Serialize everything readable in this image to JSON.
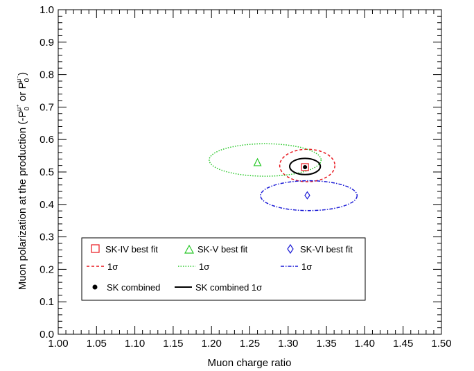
{
  "chart_data": {
    "type": "scatter",
    "xlabel": "Muon charge ratio",
    "ylabel": {
      "main": "Muon polarization at the production (-P",
      "sub": "0",
      "sup1": "μ⁺",
      "mid": " or P",
      "sup2": "μ⁻",
      "end": ")"
    },
    "xlim": [
      1.0,
      1.5
    ],
    "ylim": [
      0.0,
      1.0
    ],
    "x_ticks": [
      "1.00",
      "1.05",
      "1.10",
      "1.15",
      "1.20",
      "1.25",
      "1.30",
      "1.35",
      "1.40",
      "1.45",
      "1.50"
    ],
    "y_ticks": [
      "0.0",
      "0.1",
      "0.2",
      "0.3",
      "0.4",
      "0.5",
      "0.6",
      "0.7",
      "0.8",
      "0.9",
      "1.0"
    ],
    "grid": false,
    "legend_placement": "bottom-left",
    "series": [
      {
        "name": "SK-IV best fit",
        "marker": "open-square",
        "color": "#e8141b",
        "point": [
          1.322,
          0.515
        ],
        "contour_label": "1σ",
        "contour_style": "dashed",
        "ellipse": {
          "center": [
            1.325,
            0.52
          ],
          "rx": 0.036,
          "ry": 0.05
        }
      },
      {
        "name": "SK-V best fit",
        "marker": "open-triangle",
        "color": "#28c828",
        "point": [
          1.26,
          0.53
        ],
        "contour_label": "1σ",
        "contour_style": "dotted",
        "ellipse": {
          "center": [
            1.27,
            0.537
          ],
          "rx": 0.073,
          "ry": 0.05
        }
      },
      {
        "name": "SK-VI best fit",
        "marker": "open-diamond",
        "color": "#1a1ad6",
        "point": [
          1.325,
          0.428
        ],
        "contour_label": "1σ",
        "contour_style": "dash-dot",
        "ellipse": {
          "center": [
            1.327,
            0.427
          ],
          "rx": 0.063,
          "ry": 0.046
        }
      },
      {
        "name": "SK combined",
        "marker": "filled-circle",
        "color": "#000000",
        "point": [
          1.322,
          0.515
        ],
        "contour_label": "SK combined 1σ",
        "contour_style": "solid",
        "ellipse": {
          "center": [
            1.322,
            0.517
          ],
          "rx": 0.02,
          "ry": 0.025
        }
      }
    ]
  }
}
